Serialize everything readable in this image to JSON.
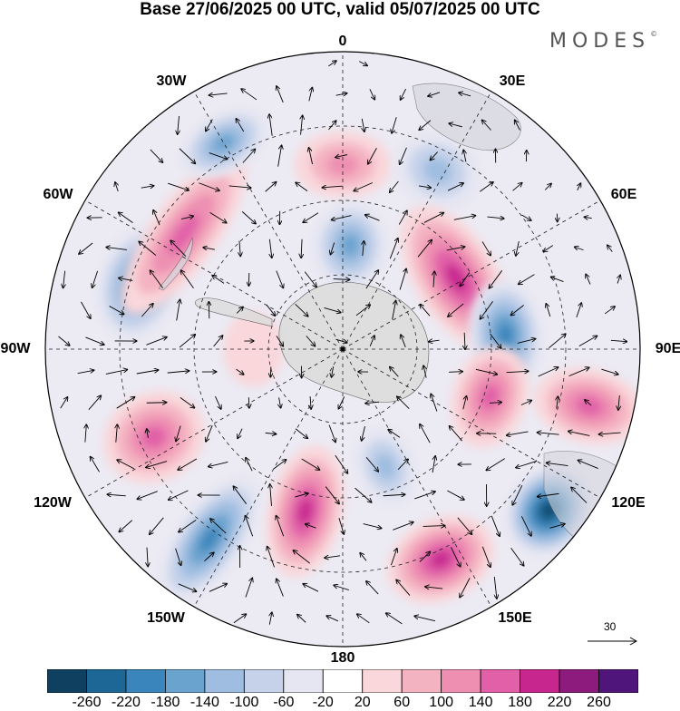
{
  "title": "Base 27/06/2025 00 UTC, valid 05/07/2025 00 UTC",
  "brand": {
    "name": "MODES",
    "mark": "©"
  },
  "longitude_labels": [
    {
      "key": "0",
      "text": "0"
    },
    {
      "key": "30E",
      "text": "30E"
    },
    {
      "key": "60E",
      "text": "60E"
    },
    {
      "key": "90E",
      "text": "90E"
    },
    {
      "key": "120E",
      "text": "120E"
    },
    {
      "key": "150E",
      "text": "150E"
    },
    {
      "key": "180",
      "text": "180"
    },
    {
      "key": "150W",
      "text": "150W"
    },
    {
      "key": "120W",
      "text": "120W"
    },
    {
      "key": "90W",
      "text": "90W"
    },
    {
      "key": "60W",
      "text": "60W"
    },
    {
      "key": "30W",
      "text": "30W"
    }
  ],
  "reference_vector": {
    "value": "30"
  },
  "colorbar": {
    "ticks": [
      "-260",
      "-220",
      "-180",
      "-140",
      "-100",
      "-60",
      "-20",
      "20",
      "60",
      "100",
      "140",
      "180",
      "220",
      "260"
    ],
    "colors": [
      "#10405f",
      "#1d6796",
      "#3a85bb",
      "#6ba3cf",
      "#9ebde0",
      "#c5d2ea",
      "#e5e6f2",
      "#ffffff",
      "#f9d7da",
      "#f4b3c1",
      "#ee8fb2",
      "#e160a8",
      "#c8268f",
      "#8c1b7d",
      "#50157a"
    ]
  },
  "anomaly_centers": [
    {
      "lon": 0,
      "dist": 0.62,
      "value": 90,
      "rx": 0.13,
      "ry": 0.09
    },
    {
      "lon": 4,
      "dist": 0.35,
      "value": -150,
      "rx": 0.1,
      "ry": 0.12
    },
    {
      "lon": 28,
      "dist": 0.68,
      "value": -100,
      "rx": 0.12,
      "ry": 0.1
    },
    {
      "lon": 58,
      "dist": 0.45,
      "value": 170,
      "rx": 0.22,
      "ry": 0.11
    },
    {
      "lon": 85,
      "dist": 0.55,
      "value": -190,
      "rx": 0.15,
      "ry": 0.1
    },
    {
      "lon": 108,
      "dist": 0.52,
      "value": 150,
      "rx": 0.14,
      "ry": 0.1
    },
    {
      "lon": 103,
      "dist": 0.85,
      "value": 140,
      "rx": 0.1,
      "ry": 0.15
    },
    {
      "lon": 128,
      "dist": 0.88,
      "value": -260,
      "rx": 0.13,
      "ry": 0.11
    },
    {
      "lon": 155,
      "dist": 0.78,
      "value": 200,
      "rx": 0.15,
      "ry": 0.11
    },
    {
      "lon": 160,
      "dist": 0.42,
      "value": -120,
      "rx": 0.08,
      "ry": 0.11
    },
    {
      "lon": 193,
      "dist": 0.56,
      "value": 180,
      "rx": 0.1,
      "ry": 0.18
    },
    {
      "lon": 215,
      "dist": 0.78,
      "value": -180,
      "rx": 0.09,
      "ry": 0.2
    },
    {
      "lon": 245,
      "dist": 0.7,
      "value": 160,
      "rx": 0.12,
      "ry": 0.14
    },
    {
      "lon": 288,
      "dist": 0.72,
      "value": -190,
      "rx": 0.16,
      "ry": 0.11
    },
    {
      "lon": 306,
      "dist": 0.66,
      "value": 150,
      "rx": 0.26,
      "ry": 0.09
    },
    {
      "lon": 330,
      "dist": 0.8,
      "value": -160,
      "rx": 0.13,
      "ry": 0.08
    },
    {
      "lon": 270,
      "dist": 0.3,
      "value": 40,
      "rx": 0.1,
      "ry": 0.08
    }
  ]
}
